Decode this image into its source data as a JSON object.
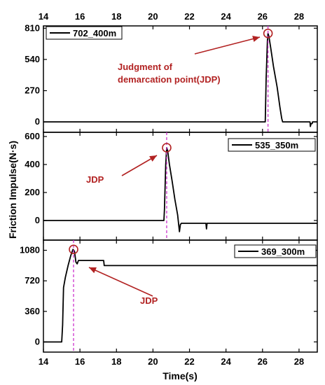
{
  "colors": {
    "line": "#000000",
    "jdp_line": "#cc33cc",
    "annotation": "#b22222",
    "frame": "#000000"
  },
  "chart_data": {
    "type": "line",
    "xlabel": "Time(s)",
    "ylabel": "Friction Impulse(N·s)",
    "xlim": [
      14,
      29
    ],
    "xticks": [
      "14",
      "16",
      "18",
      "20",
      "22",
      "24",
      "26",
      "28"
    ],
    "panels": [
      {
        "legend": "702_400m",
        "ylim": [
          -90,
          830
        ],
        "yticks": [
          "0",
          "270",
          "540",
          "810"
        ],
        "jdp_x": 26.3,
        "jdp_y": 765,
        "annotation": [
          "Judgment of",
          "demarcation point(JDP)"
        ],
        "x": [
          14,
          26.15,
          26.2,
          26.27,
          26.3,
          26.35,
          26.45,
          26.6,
          26.8,
          26.95,
          27.05,
          27.1,
          27.15,
          28.6,
          28.62,
          28.66,
          28.7,
          28.72,
          28.74,
          29
        ],
        "y": [
          0,
          0,
          380,
          700,
          765,
          740,
          640,
          480,
          300,
          130,
          30,
          0,
          0,
          0,
          -40,
          -15,
          -15,
          -15,
          0,
          0
        ]
      },
      {
        "legend": "535_350m",
        "ylim": [
          -140,
          630
        ],
        "yticks": [
          "0",
          "200",
          "400",
          "600"
        ],
        "jdp_x": 20.75,
        "jdp_y": 520,
        "annotation": [
          "JDP"
        ],
        "x": [
          14,
          20.6,
          20.63,
          20.7,
          20.75,
          20.8,
          20.9,
          21.05,
          21.2,
          21.35,
          21.45,
          21.5,
          21.55,
          21.6,
          21.65,
          22.9,
          22.93,
          22.96,
          23.0,
          29
        ],
        "y": [
          0,
          0,
          80,
          400,
          520,
          500,
          400,
          280,
          150,
          40,
          -80,
          -30,
          -20,
          -20,
          -20,
          -20,
          -60,
          -20,
          -20,
          -20
        ]
      },
      {
        "legend": "369_300m",
        "ylim": [
          -120,
          1200
        ],
        "yticks": [
          "0",
          "360",
          "720",
          "1080"
        ],
        "jdp_x": 15.65,
        "jdp_y": 1090,
        "annotation": [
          "JDP"
        ],
        "x": [
          14,
          15.0,
          15.05,
          15.1,
          15.2,
          15.35,
          15.5,
          15.62,
          15.7,
          15.78,
          15.85,
          15.92,
          16.0,
          16.6,
          17.3,
          17.33,
          29
        ],
        "y": [
          0,
          0,
          200,
          640,
          760,
          900,
          1020,
          1090,
          1070,
          940,
          920,
          960,
          960,
          960,
          960,
          900,
          900
        ]
      }
    ]
  }
}
